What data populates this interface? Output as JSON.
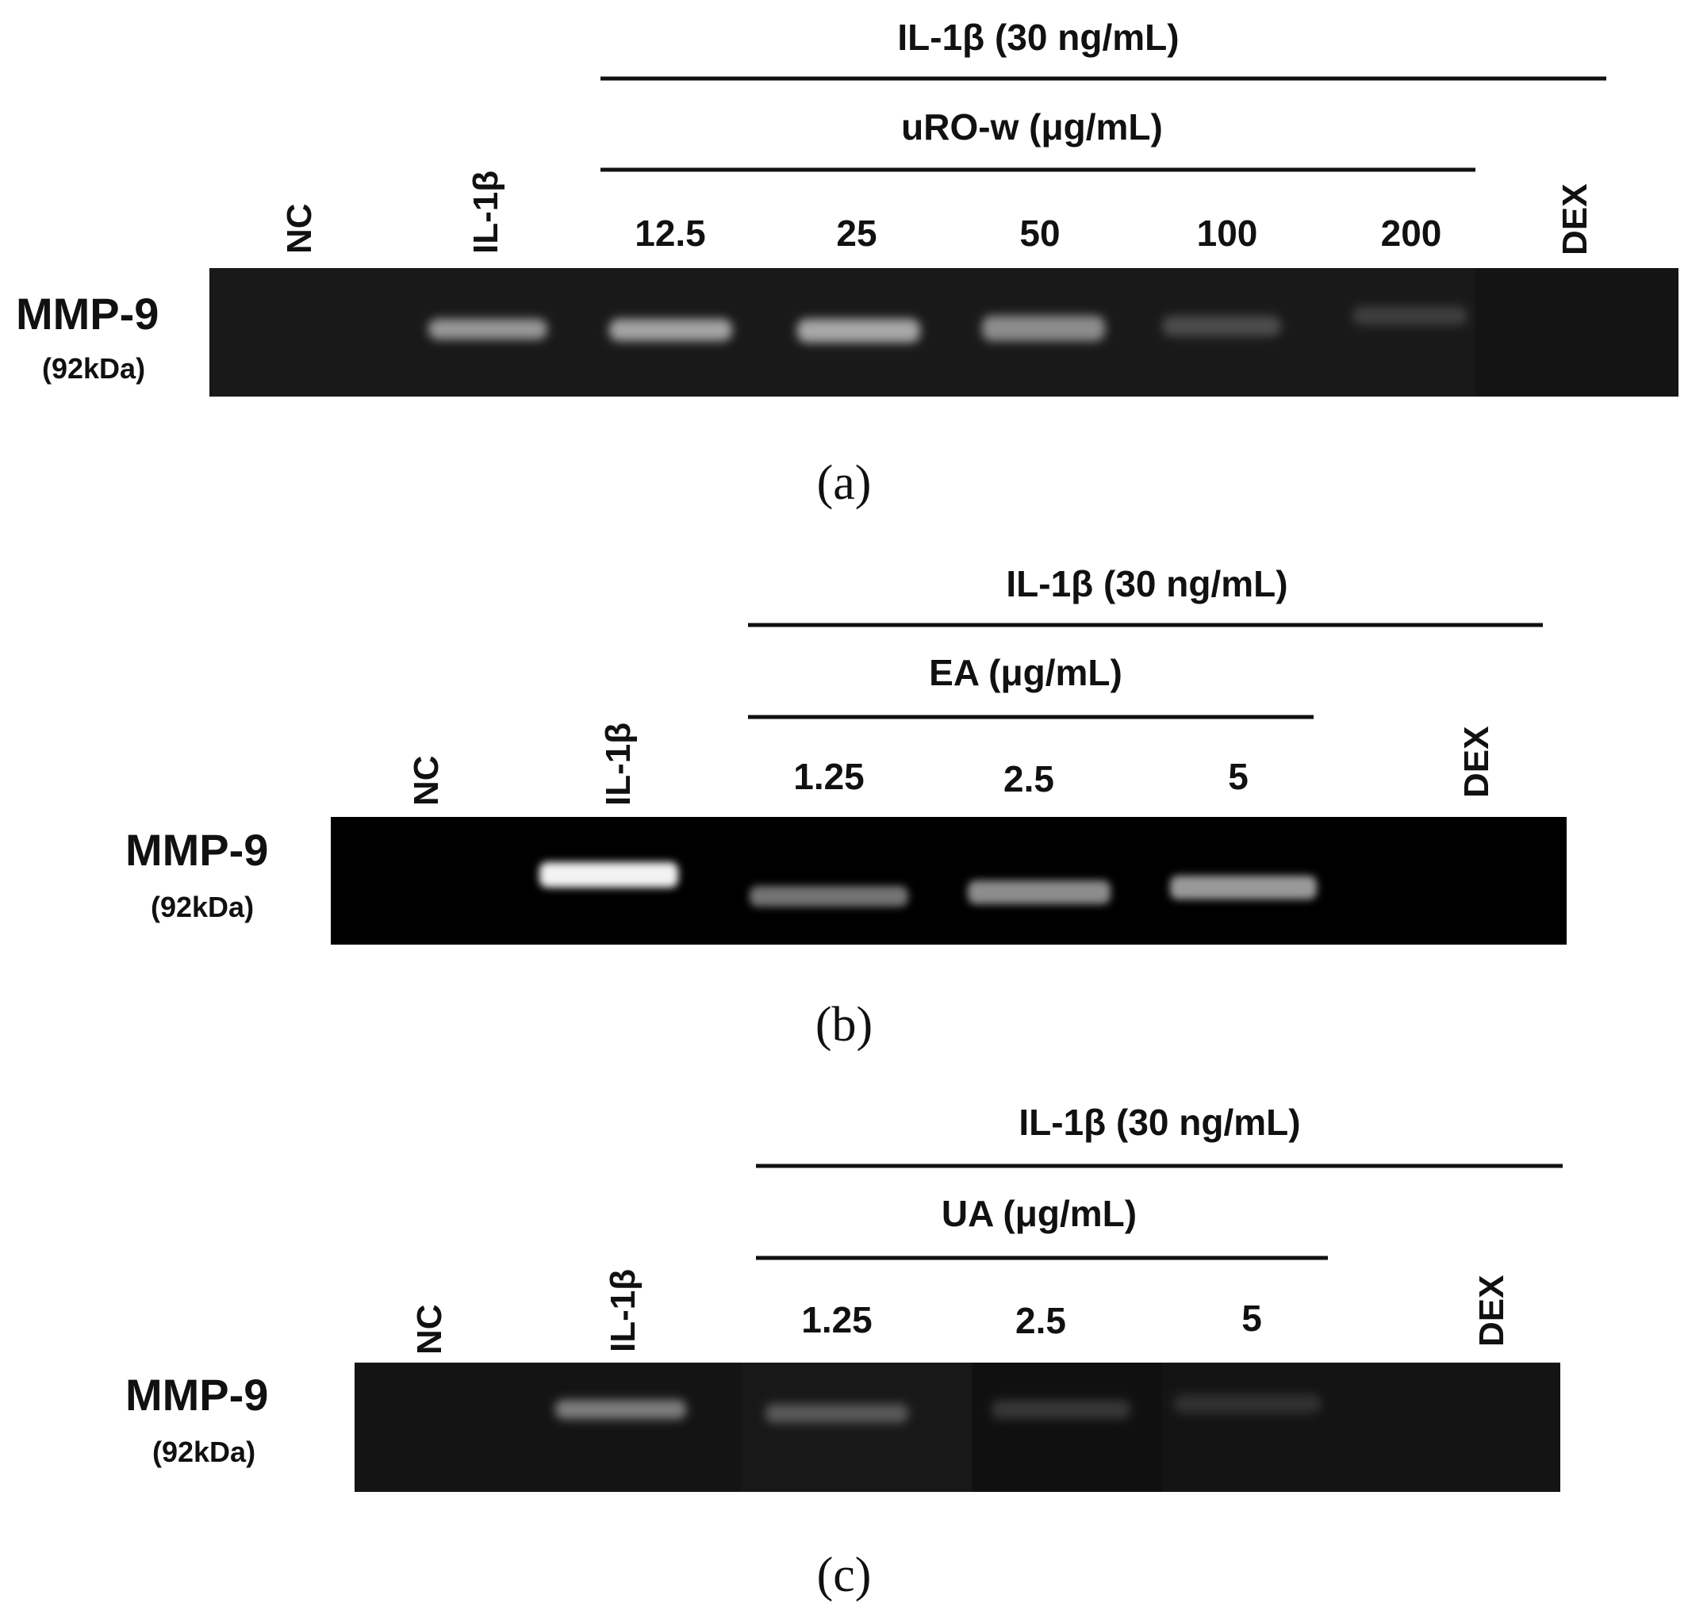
{
  "figure": {
    "panels": [
      {
        "id": "a",
        "caption": "(a)",
        "treatment_header": "IL-1β (30 ng/mL)",
        "compound_header": "uRO-w (μg/mL)",
        "protein_label": "MMP-9",
        "protein_size": "(92kDa)",
        "control_lanes": [
          "NC",
          "IL-1β"
        ],
        "dose_lanes": [
          "12.5",
          "25",
          "50",
          "100",
          "200"
        ],
        "reference_lane": "DEX",
        "gel_color": "#191919",
        "band_color": "#ffffff",
        "lane_intensity": {
          "NC": 0,
          "IL-1β": 0.55,
          "12.5": 0.6,
          "25": 0.62,
          "50": 0.5,
          "100": 0.22,
          "200": 0.16,
          "DEX": 0
        }
      },
      {
        "id": "b",
        "caption": "(b)",
        "treatment_header": "IL-1β (30 ng/mL)",
        "compound_header": "EA (μg/mL)",
        "protein_label": "MMP-9",
        "protein_size": "(92kDa)",
        "control_lanes": [
          "NC",
          "IL-1β"
        ],
        "dose_lanes": [
          "1.25",
          "2.5",
          "5"
        ],
        "reference_lane": "DEX",
        "gel_color": "#000000",
        "band_color": "#ffffff",
        "lane_intensity": {
          "NC": 0.03,
          "IL-1β": 0.95,
          "1.25": 0.45,
          "2.5": 0.55,
          "5": 0.6,
          "DEX": 0
        }
      },
      {
        "id": "c",
        "caption": "(c)",
        "treatment_header": "IL-1β (30 ng/mL)",
        "compound_header": "UA (μg/mL)",
        "protein_label": "MMP-9",
        "protein_size": "(92kDa)",
        "control_lanes": [
          "NC",
          "IL-1β"
        ],
        "dose_lanes": [
          "1.25",
          "2.5",
          "5"
        ],
        "reference_lane": "DEX",
        "gel_color": "#141414",
        "band_color": "#ffffff",
        "lane_intensity": {
          "NC": 0,
          "IL-1β": 0.45,
          "1.25": 0.28,
          "2.5": 0.16,
          "5": 0.12,
          "DEX": 0
        }
      }
    ]
  }
}
